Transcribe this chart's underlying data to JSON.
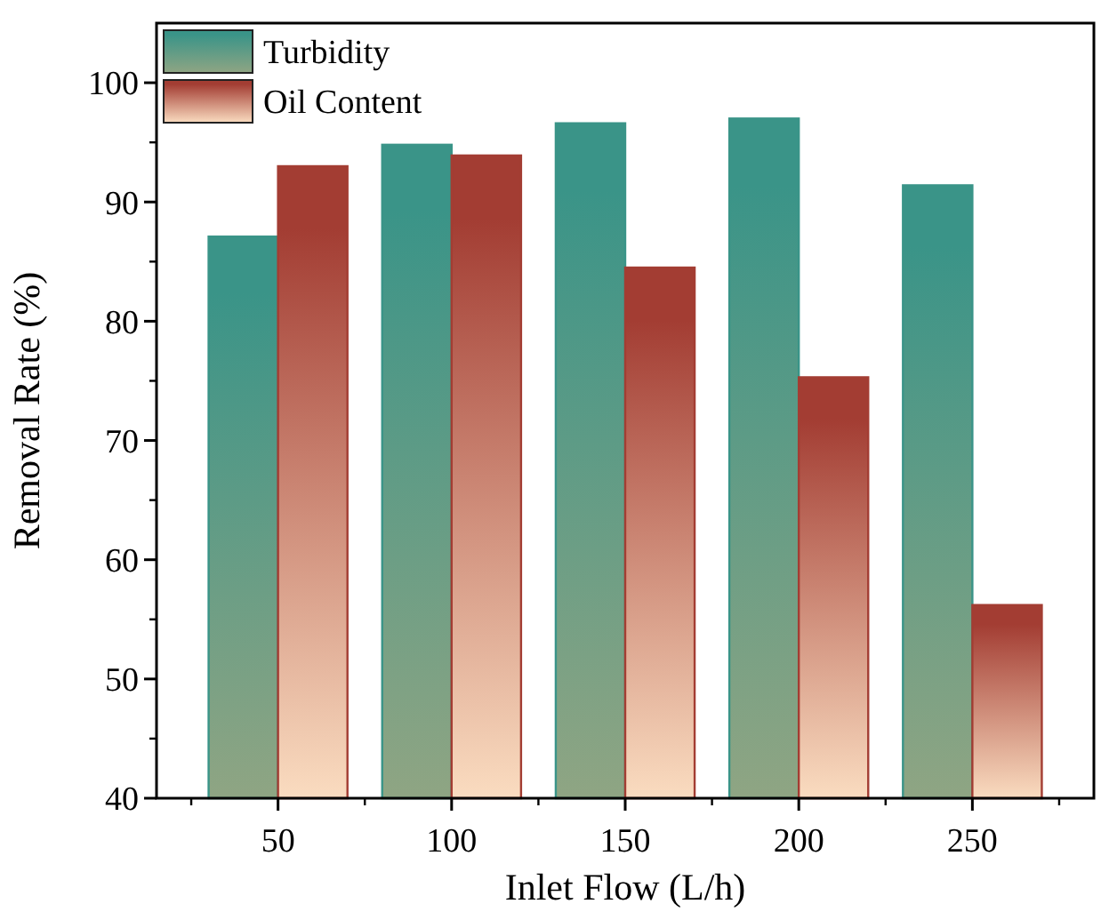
{
  "chart_data": {
    "type": "bar",
    "xlabel": "Inlet Flow (L/h)",
    "ylabel": "Removal Rate (%)",
    "categories": [
      "50",
      "100",
      "150",
      "200",
      "250"
    ],
    "series": [
      {
        "name": "Turbidity",
        "color": "#3a9488",
        "values": [
          87.1,
          94.8,
          96.6,
          97.0,
          91.4
        ]
      },
      {
        "name": "Oil Content",
        "color": "#a33d33",
        "values": [
          93.0,
          93.9,
          84.5,
          75.3,
          56.2
        ]
      }
    ],
    "ylim": [
      40,
      105
    ],
    "yticks": [
      40,
      50,
      60,
      70,
      80,
      90,
      100
    ],
    "legend": "top left"
  }
}
